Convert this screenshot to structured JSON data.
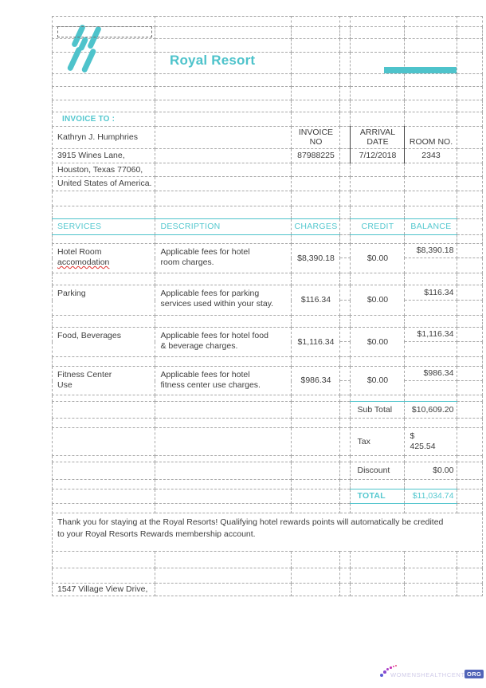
{
  "colors": {
    "accent": "#4ec3cb",
    "header_teal": "#55c8cf",
    "grid_line": "#a8a8a8",
    "text": "#3e3e3e",
    "spellcheck_red": "#e0312e",
    "watermark_badge": "#5164b8",
    "watermark_text": "#cfcae8"
  },
  "brand": {
    "title": "Royal Resort"
  },
  "invoice_to": {
    "label": "INVOICE TO :",
    "name": "Kathryn J. Humphries",
    "address_line1": "3915  Wines Lane,",
    "address_line2": "Houston, Texas 77060,",
    "address_line3": "United States of America."
  },
  "meta": {
    "invoice_no_label": "INVOICE\nNO",
    "invoice_no": "87988225",
    "arrival_label": "ARRIVAL\nDATE",
    "arrival_date": "7/12/2018",
    "room_label": "ROOM NO.",
    "room_no": "2343"
  },
  "table": {
    "headers": {
      "services": "SERVICES",
      "description": "DESCRIPTION",
      "charges": "CHARGES",
      "credit": "CREDIT",
      "balance": "BALANCE"
    },
    "rows": [
      {
        "service_main": "Hotel Room",
        "service_misspelled": "accomodation",
        "description": "Applicable fees for hotel\nroom charges.",
        "charges": "$8,390.18",
        "credit": "$0.00",
        "balance": "$8,390.18"
      },
      {
        "service_main": "Parking",
        "service_misspelled": "",
        "description": "Applicable fees for parking\nservices used within your stay.",
        "charges": "$116.34",
        "credit": "$0.00",
        "balance": "$116.34"
      },
      {
        "service_main": "Food, Beverages",
        "service_misspelled": "",
        "description": "Applicable fees for hotel food\n& beverage charges.",
        "charges": "$1,116.34",
        "credit": "$0.00",
        "balance": "$1,116.34"
      },
      {
        "service_main": "Fitness Center\nUse",
        "service_misspelled": "",
        "description": "Applicable fees for hotel\nfitness center use charges.",
        "charges": "$986.34",
        "credit": "$0.00",
        "balance": "$986.34"
      }
    ]
  },
  "totals": {
    "sub_total_label": "Sub Total",
    "sub_total": "$10,609.20",
    "tax_label": "Tax",
    "tax": "$\n425.54",
    "discount_label": "Discount",
    "discount": "$0.00",
    "total_label": "TOTAL",
    "total": "$11,034.74"
  },
  "footer": {
    "thanks": "Thank you for staying at the Royal Resorts! Qualifying hotel rewards points will automatically be credited\nto your Royal Resorts Rewards membership account.",
    "address": "1547  Village View Drive,"
  },
  "watermark": {
    "text": "WOMENSHEALTHCENTER.",
    "badge": "ORG"
  }
}
